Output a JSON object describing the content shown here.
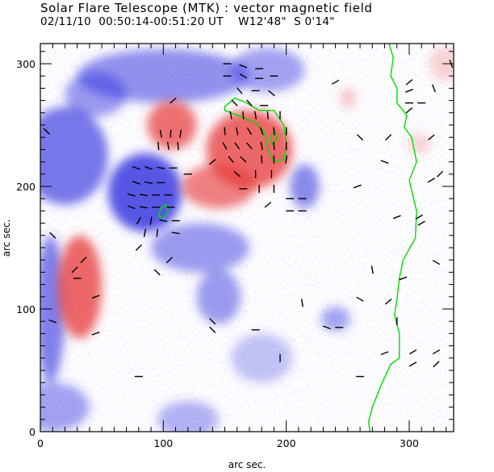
{
  "header": {
    "title": "Solar Flare Telescope (MTK) : vector magnetic field",
    "date": "02/11/10",
    "time_range": "00:50:14-00:51:20 UT",
    "position_ew": "W12'48\"",
    "position_ns": "S 0'14\""
  },
  "chart_data": {
    "type": "heatmap",
    "title": "Solar Flare Telescope (MTK) : vector magnetic field",
    "xlabel": "arc sec.",
    "ylabel": "arc sec.",
    "xlim": [
      0,
      340
    ],
    "ylim": [
      0,
      318
    ],
    "x_ticks": [
      0,
      100,
      200,
      300
    ],
    "y_ticks": [
      0,
      100,
      200,
      300
    ],
    "x_tick_labels": [
      "0",
      "100",
      "200",
      "300"
    ],
    "y_tick_labels": [
      "0",
      "100",
      "200",
      "300"
    ],
    "x_minor_step": 10,
    "y_minor_step": 10,
    "colors": {
      "positive_field": "#e83a3a",
      "negative_field": "#3a3ae0",
      "contour": "#00dd00",
      "vectors": "#000000"
    },
    "positive_regions": [
      {
        "x": 107,
        "y": 250,
        "rx": 20,
        "ry": 20,
        "strength": 0.85
      },
      {
        "x": 170,
        "y": 230,
        "rx": 35,
        "ry": 32,
        "strength": 0.9
      },
      {
        "x": 145,
        "y": 200,
        "rx": 30,
        "ry": 18,
        "strength": 0.75
      },
      {
        "x": 32,
        "y": 118,
        "rx": 18,
        "ry": 42,
        "strength": 0.9
      },
      {
        "x": 250,
        "y": 272,
        "rx": 6,
        "ry": 8,
        "strength": 0.35
      },
      {
        "x": 308,
        "y": 235,
        "rx": 10,
        "ry": 8,
        "strength": 0.25
      },
      {
        "x": 330,
        "y": 300,
        "rx": 14,
        "ry": 14,
        "strength": 0.25
      }
    ],
    "negative_regions": [
      {
        "x": 85,
        "y": 195,
        "rx": 30,
        "ry": 32,
        "strength": 1.0
      },
      {
        "x": 20,
        "y": 225,
        "rx": 35,
        "ry": 40,
        "strength": 0.8
      },
      {
        "x": 100,
        "y": 290,
        "rx": 70,
        "ry": 22,
        "strength": 0.65
      },
      {
        "x": 45,
        "y": 275,
        "rx": 25,
        "ry": 18,
        "strength": 0.6
      },
      {
        "x": 130,
        "y": 150,
        "rx": 40,
        "ry": 20,
        "strength": 0.6
      },
      {
        "x": 145,
        "y": 110,
        "rx": 18,
        "ry": 22,
        "strength": 0.6
      },
      {
        "x": 8,
        "y": 100,
        "rx": 12,
        "ry": 60,
        "strength": 0.75
      },
      {
        "x": 215,
        "y": 200,
        "rx": 12,
        "ry": 18,
        "strength": 0.7
      },
      {
        "x": 185,
        "y": 295,
        "rx": 30,
        "ry": 18,
        "strength": 0.55
      },
      {
        "x": 240,
        "y": 92,
        "rx": 12,
        "ry": 10,
        "strength": 0.55
      },
      {
        "x": 10,
        "y": 20,
        "rx": 30,
        "ry": 20,
        "strength": 0.55
      },
      {
        "x": 120,
        "y": 10,
        "rx": 25,
        "ry": 15,
        "strength": 0.45
      },
      {
        "x": 180,
        "y": 60,
        "rx": 25,
        "ry": 20,
        "strength": 0.35
      }
    ],
    "vectors": [
      {
        "x": 152,
        "y": 300,
        "angle": 0
      },
      {
        "x": 165,
        "y": 298,
        "angle": -20
      },
      {
        "x": 178,
        "y": 296,
        "angle": 0
      },
      {
        "x": 152,
        "y": 290,
        "angle": 0
      },
      {
        "x": 165,
        "y": 290,
        "angle": -30
      },
      {
        "x": 178,
        "y": 288,
        "angle": 0
      },
      {
        "x": 190,
        "y": 290,
        "angle": 0
      },
      {
        "x": 162,
        "y": 278,
        "angle": -50
      },
      {
        "x": 175,
        "y": 278,
        "angle": 0
      },
      {
        "x": 188,
        "y": 276,
        "angle": -40
      },
      {
        "x": 158,
        "y": 268,
        "angle": -45
      },
      {
        "x": 170,
        "y": 268,
        "angle": -50
      },
      {
        "x": 182,
        "y": 266,
        "angle": 0
      },
      {
        "x": 155,
        "y": 258,
        "angle": -80
      },
      {
        "x": 165,
        "y": 258,
        "angle": -85
      },
      {
        "x": 175,
        "y": 258,
        "angle": -80
      },
      {
        "x": 185,
        "y": 258,
        "angle": -85
      },
      {
        "x": 195,
        "y": 258,
        "angle": -90
      },
      {
        "x": 150,
        "y": 245,
        "angle": -85
      },
      {
        "x": 160,
        "y": 245,
        "angle": -80
      },
      {
        "x": 170,
        "y": 245,
        "angle": -60
      },
      {
        "x": 180,
        "y": 245,
        "angle": -70
      },
      {
        "x": 190,
        "y": 245,
        "angle": -85
      },
      {
        "x": 200,
        "y": 245,
        "angle": -90
      },
      {
        "x": 150,
        "y": 233,
        "angle": -60
      },
      {
        "x": 160,
        "y": 233,
        "angle": -55
      },
      {
        "x": 170,
        "y": 233,
        "angle": -50
      },
      {
        "x": 180,
        "y": 233,
        "angle": -80
      },
      {
        "x": 190,
        "y": 233,
        "angle": -85
      },
      {
        "x": 200,
        "y": 233,
        "angle": -90
      },
      {
        "x": 155,
        "y": 222,
        "angle": -50
      },
      {
        "x": 165,
        "y": 222,
        "angle": -45
      },
      {
        "x": 180,
        "y": 222,
        "angle": -85
      },
      {
        "x": 190,
        "y": 222,
        "angle": -90
      },
      {
        "x": 200,
        "y": 222,
        "angle": -100
      },
      {
        "x": 160,
        "y": 210,
        "angle": -40
      },
      {
        "x": 175,
        "y": 210,
        "angle": -90
      },
      {
        "x": 188,
        "y": 210,
        "angle": -90
      },
      {
        "x": 165,
        "y": 198,
        "angle": 0
      },
      {
        "x": 178,
        "y": 198,
        "angle": -90
      },
      {
        "x": 190,
        "y": 198,
        "angle": -90
      },
      {
        "x": 98,
        "y": 243,
        "angle": -80
      },
      {
        "x": 106,
        "y": 243,
        "angle": -95
      },
      {
        "x": 114,
        "y": 243,
        "angle": -100
      },
      {
        "x": 96,
        "y": 233,
        "angle": -85
      },
      {
        "x": 104,
        "y": 233,
        "angle": -80
      },
      {
        "x": 112,
        "y": 233,
        "angle": -85
      },
      {
        "x": 108,
        "y": 270,
        "angle": 40
      },
      {
        "x": 78,
        "y": 215,
        "angle": -20
      },
      {
        "x": 88,
        "y": 215,
        "angle": -20
      },
      {
        "x": 98,
        "y": 215,
        "angle": -10
      },
      {
        "x": 108,
        "y": 215,
        "angle": 0
      },
      {
        "x": 78,
        "y": 203,
        "angle": -20
      },
      {
        "x": 88,
        "y": 203,
        "angle": -10
      },
      {
        "x": 98,
        "y": 203,
        "angle": 0
      },
      {
        "x": 74,
        "y": 193,
        "angle": -15
      },
      {
        "x": 84,
        "y": 193,
        "angle": -10
      },
      {
        "x": 94,
        "y": 193,
        "angle": 0
      },
      {
        "x": 104,
        "y": 193,
        "angle": 0
      },
      {
        "x": 74,
        "y": 183,
        "angle": -20
      },
      {
        "x": 84,
        "y": 183,
        "angle": -10
      },
      {
        "x": 94,
        "y": 183,
        "angle": 0
      },
      {
        "x": 106,
        "y": 183,
        "angle": 0
      },
      {
        "x": 80,
        "y": 172,
        "angle": 60
      },
      {
        "x": 90,
        "y": 172,
        "angle": 80
      },
      {
        "x": 100,
        "y": 172,
        "angle": -10
      },
      {
        "x": 110,
        "y": 172,
        "angle": 0
      },
      {
        "x": 85,
        "y": 162,
        "angle": 80
      },
      {
        "x": 95,
        "y": 162,
        "angle": 85
      },
      {
        "x": 110,
        "y": 162,
        "angle": -10
      },
      {
        "x": 120,
        "y": 210,
        "angle": 0
      },
      {
        "x": 140,
        "y": 220,
        "angle": 40
      },
      {
        "x": 203,
        "y": 190,
        "angle": 0
      },
      {
        "x": 213,
        "y": 190,
        "angle": 0
      },
      {
        "x": 203,
        "y": 180,
        "angle": 0
      },
      {
        "x": 213,
        "y": 180,
        "angle": 0
      },
      {
        "x": 185,
        "y": 185,
        "angle": 40
      },
      {
        "x": 35,
        "y": 140,
        "angle": 45
      },
      {
        "x": 28,
        "y": 132,
        "angle": 45
      },
      {
        "x": 30,
        "y": 125,
        "angle": 0
      },
      {
        "x": 45,
        "y": 110,
        "angle": 20
      },
      {
        "x": 45,
        "y": 80,
        "angle": 20
      },
      {
        "x": 10,
        "y": 160,
        "angle": -45
      },
      {
        "x": 10,
        "y": 90,
        "angle": -20
      },
      {
        "x": 5,
        "y": 245,
        "angle": -45
      },
      {
        "x": 95,
        "y": 130,
        "angle": -45
      },
      {
        "x": 105,
        "y": 140,
        "angle": 45
      },
      {
        "x": 80,
        "y": 150,
        "angle": 45
      },
      {
        "x": 140,
        "y": 90,
        "angle": -45
      },
      {
        "x": 140,
        "y": 83,
        "angle": -45
      },
      {
        "x": 175,
        "y": 83,
        "angle": 0
      },
      {
        "x": 80,
        "y": 45,
        "angle": 0
      },
      {
        "x": 195,
        "y": 60,
        "angle": 90
      },
      {
        "x": 233,
        "y": 85,
        "angle": -20
      },
      {
        "x": 243,
        "y": 85,
        "angle": 0
      },
      {
        "x": 213,
        "y": 105,
        "angle": -80
      },
      {
        "x": 240,
        "y": 285,
        "angle": 30
      },
      {
        "x": 260,
        "y": 240,
        "angle": -45
      },
      {
        "x": 283,
        "y": 240,
        "angle": 45
      },
      {
        "x": 300,
        "y": 285,
        "angle": 40
      },
      {
        "x": 300,
        "y": 278,
        "angle": 20
      },
      {
        "x": 300,
        "y": 268,
        "angle": 0
      },
      {
        "x": 310,
        "y": 268,
        "angle": 0
      },
      {
        "x": 300,
        "y": 262,
        "angle": 40
      },
      {
        "x": 318,
        "y": 240,
        "angle": 40
      },
      {
        "x": 318,
        "y": 205,
        "angle": 30
      },
      {
        "x": 325,
        "y": 210,
        "angle": 45
      },
      {
        "x": 280,
        "y": 220,
        "angle": -20
      },
      {
        "x": 258,
        "y": 200,
        "angle": 20
      },
      {
        "x": 290,
        "y": 175,
        "angle": 20
      },
      {
        "x": 310,
        "y": 170,
        "angle": 30
      },
      {
        "x": 308,
        "y": 175,
        "angle": 30
      },
      {
        "x": 320,
        "y": 280,
        "angle": -70
      },
      {
        "x": 283,
        "y": 106,
        "angle": 40
      },
      {
        "x": 334,
        "y": 300,
        "angle": -70
      },
      {
        "x": 322,
        "y": 138,
        "angle": -30
      },
      {
        "x": 270,
        "y": 132,
        "angle": -80
      },
      {
        "x": 295,
        "y": 125,
        "angle": 20
      },
      {
        "x": 260,
        "y": 108,
        "angle": -30
      },
      {
        "x": 290,
        "y": 90,
        "angle": 90
      },
      {
        "x": 303,
        "y": 65,
        "angle": 30
      },
      {
        "x": 322,
        "y": 65,
        "angle": 30
      },
      {
        "x": 303,
        "y": 55,
        "angle": 30
      },
      {
        "x": 322,
        "y": 55,
        "angle": 45
      },
      {
        "x": 260,
        "y": 45,
        "angle": 0
      },
      {
        "x": 280,
        "y": 64,
        "angle": 20
      }
    ],
    "contours": [
      {
        "type": "line",
        "points": [
          [
            283,
            318
          ],
          [
            287,
            305
          ],
          [
            285,
            290
          ],
          [
            290,
            280
          ],
          [
            290,
            268
          ],
          [
            298,
            258
          ],
          [
            296,
            248
          ],
          [
            302,
            240
          ],
          [
            306,
            220
          ],
          [
            300,
            205
          ],
          [
            306,
            180
          ],
          [
            305,
            158
          ],
          [
            295,
            140
          ],
          [
            292,
            125
          ],
          [
            290,
            108
          ],
          [
            288,
            95
          ],
          [
            292,
            80
          ],
          [
            292,
            60
          ],
          [
            285,
            55
          ],
          [
            278,
            40
          ],
          [
            274,
            30
          ],
          [
            270,
            20
          ],
          [
            267,
            8
          ],
          [
            268,
            0
          ]
        ]
      },
      {
        "type": "closed",
        "points": [
          [
            150,
            265
          ],
          [
            158,
            272
          ],
          [
            168,
            268
          ],
          [
            178,
            262
          ],
          [
            190,
            262
          ],
          [
            198,
            250
          ],
          [
            200,
            235
          ],
          [
            198,
            222
          ],
          [
            190,
            220
          ],
          [
            185,
            230
          ],
          [
            182,
            245
          ],
          [
            175,
            252
          ],
          [
            160,
            258
          ],
          [
            150,
            262
          ]
        ]
      },
      {
        "type": "closed",
        "points": [
          [
            98,
            182
          ],
          [
            102,
            185
          ],
          [
            104,
            180
          ],
          [
            100,
            174
          ],
          [
            96,
            176
          ]
        ]
      },
      {
        "type": "closed",
        "points": [
          [
            188,
            242
          ],
          [
            191,
            245
          ],
          [
            192,
            238
          ],
          [
            189,
            234
          ],
          [
            187,
            238
          ]
        ]
      }
    ]
  }
}
